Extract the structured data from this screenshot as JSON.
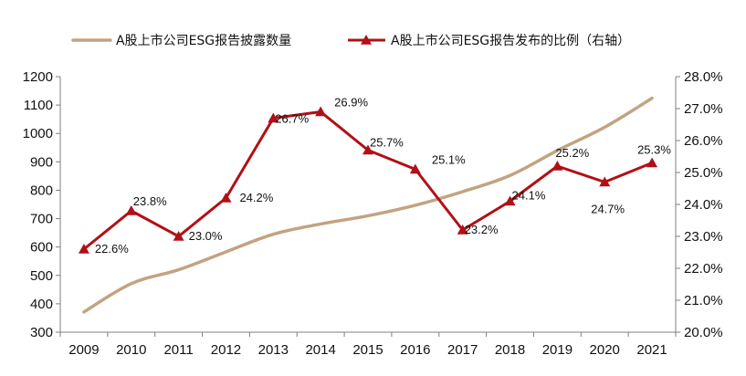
{
  "chart_data": {
    "type": "line",
    "x": [
      "2009",
      "2010",
      "2011",
      "2012",
      "2013",
      "2014",
      "2015",
      "2016",
      "2017",
      "2018",
      "2019",
      "2020",
      "2021"
    ],
    "series": [
      {
        "name": "A股上市公司ESG报告披露数量",
        "axis": "left",
        "color": "#c2a382",
        "marker": "none",
        "values": [
          371,
          471,
          520,
          583,
          645,
          681,
          710,
          747,
          795,
          852,
          940,
          1022,
          1124
        ]
      },
      {
        "name": "A股上市公司ESG报告发布的比例（右轴）",
        "axis": "right",
        "color": "#b01016",
        "marker": "triangle",
        "values": [
          22.6,
          23.8,
          23.0,
          24.2,
          26.7,
          26.9,
          25.7,
          25.1,
          23.2,
          24.1,
          25.2,
          24.7,
          25.3
        ],
        "labels": [
          "22.6%",
          "23.8%",
          "23.0%",
          "24.2%",
          "26.7%",
          "26.9%",
          "25.7%",
          "25.1%",
          "23.2%",
          "24.1%",
          "25.2%",
          "24.7%",
          "25.3%"
        ]
      }
    ],
    "y_left": {
      "ylim": [
        300,
        1200
      ],
      "ticks": [
        "300",
        "400",
        "500",
        "600",
        "700",
        "800",
        "900",
        "1000",
        "1100",
        "1200"
      ]
    },
    "y_right": {
      "ylim": [
        20.0,
        28.0
      ],
      "ticks": [
        "20.0%",
        "21.0%",
        "22.0%",
        "23.0%",
        "24.0%",
        "25.0%",
        "26.0%",
        "27.0%",
        "28.0%"
      ]
    },
    "grid": false,
    "legend": "top"
  }
}
